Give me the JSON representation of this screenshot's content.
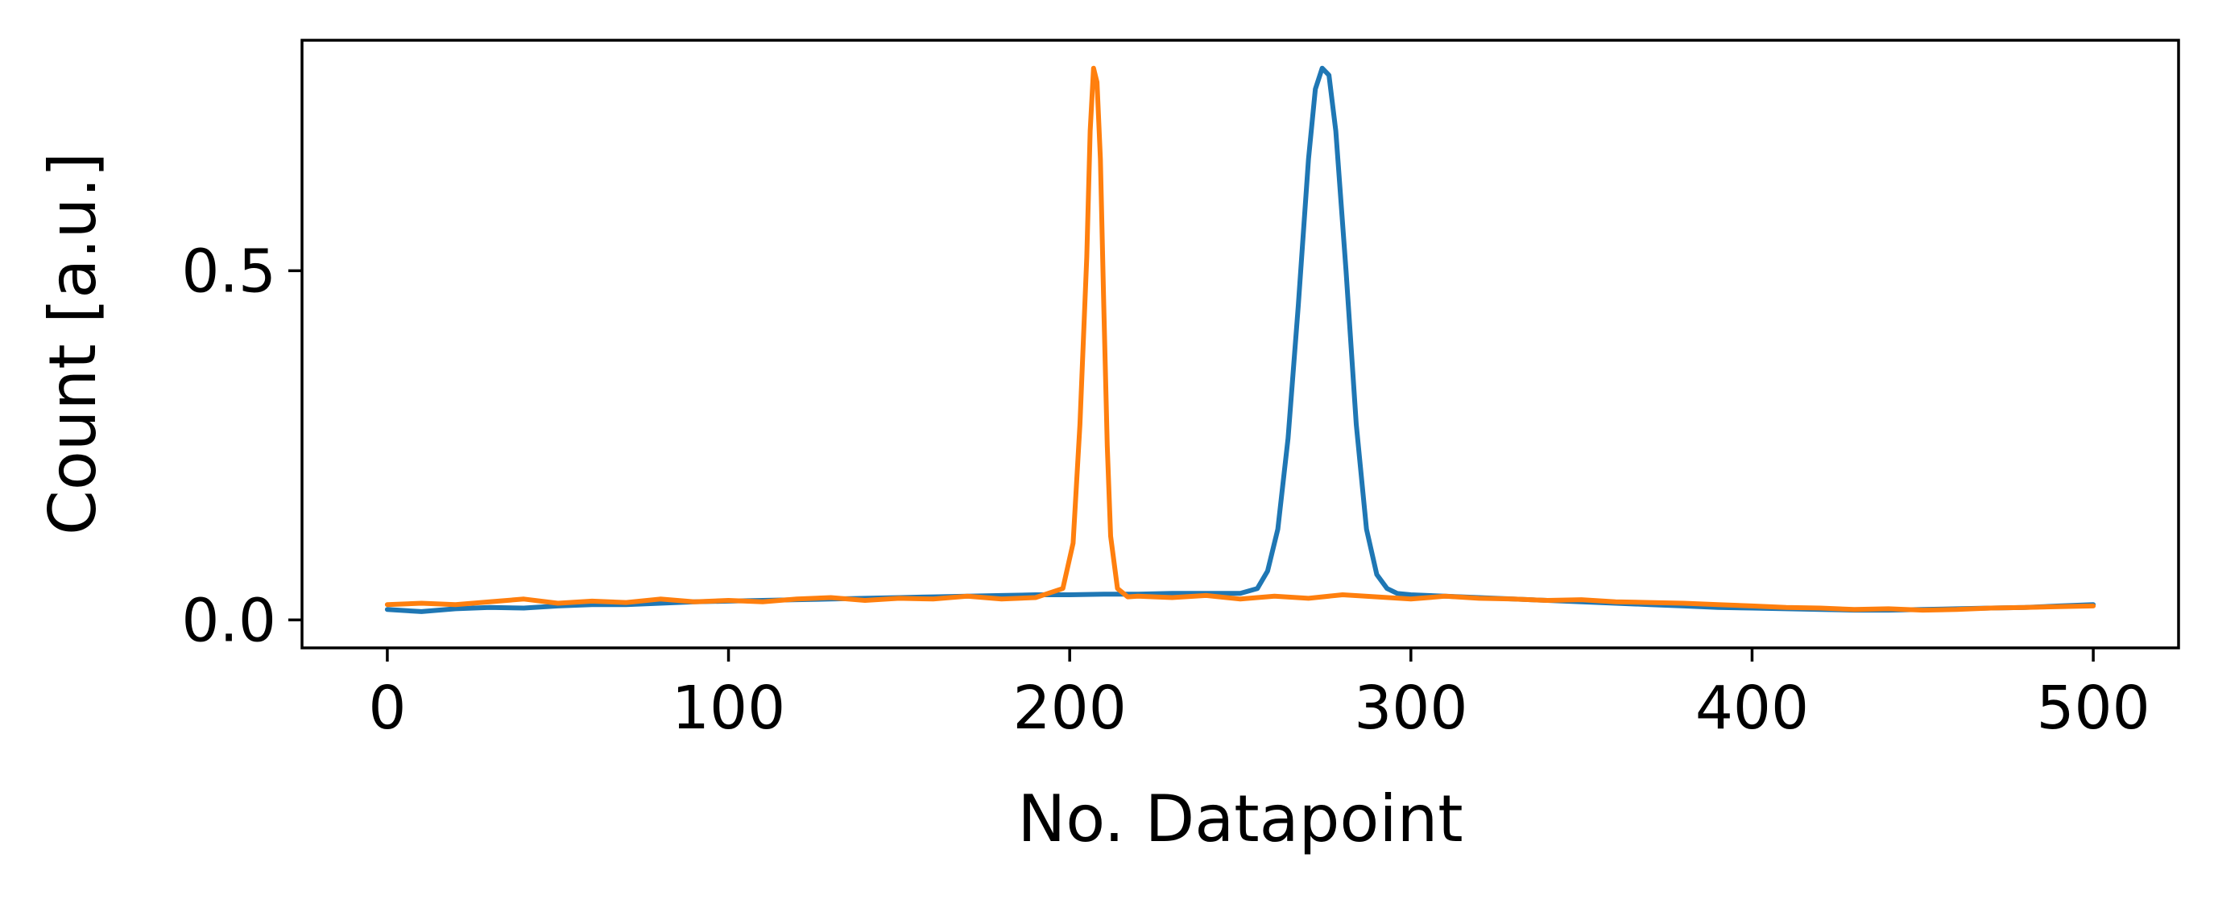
{
  "chart_data": {
    "type": "line",
    "title": "",
    "xlabel": "No. Datapoint",
    "ylabel": "Count [a.u.]",
    "xlim": [
      -25,
      525
    ],
    "ylim": [
      -0.04,
      0.83
    ],
    "grid": false,
    "legend": "none",
    "x_ticks": [
      0,
      100,
      200,
      300,
      400,
      500
    ],
    "x_tick_labels": [
      "0",
      "100",
      "200",
      "300",
      "400",
      "500"
    ],
    "y_ticks": [
      0.0,
      0.5
    ],
    "y_tick_labels": [
      "0.0",
      "0.5"
    ],
    "series": [
      {
        "color": "#1f77b4",
        "x": [
          0,
          10,
          20,
          30,
          40,
          50,
          60,
          70,
          80,
          90,
          100,
          110,
          120,
          130,
          140,
          150,
          160,
          170,
          180,
          190,
          200,
          210,
          220,
          230,
          240,
          250,
          255,
          258,
          261,
          264,
          267,
          270,
          272,
          274,
          276,
          278,
          281,
          284,
          287,
          290,
          293,
          296,
          300,
          310,
          320,
          330,
          340,
          350,
          360,
          370,
          380,
          390,
          400,
          410,
          420,
          430,
          440,
          450,
          460,
          470,
          480,
          490,
          500
        ],
        "y": [
          0.015,
          0.012,
          0.016,
          0.018,
          0.017,
          0.02,
          0.022,
          0.022,
          0.024,
          0.026,
          0.027,
          0.028,
          0.029,
          0.03,
          0.031,
          0.032,
          0.033,
          0.034,
          0.035,
          0.036,
          0.036,
          0.037,
          0.037,
          0.038,
          0.038,
          0.038,
          0.045,
          0.07,
          0.13,
          0.26,
          0.45,
          0.66,
          0.76,
          0.79,
          0.78,
          0.7,
          0.5,
          0.28,
          0.13,
          0.065,
          0.045,
          0.038,
          0.036,
          0.034,
          0.032,
          0.03,
          0.028,
          0.026,
          0.024,
          0.022,
          0.02,
          0.018,
          0.017,
          0.016,
          0.015,
          0.014,
          0.014,
          0.015,
          0.016,
          0.017,
          0.018,
          0.02,
          0.022
        ]
      },
      {
        "color": "#ff7f0e",
        "x": [
          0,
          10,
          20,
          30,
          40,
          50,
          60,
          70,
          80,
          90,
          100,
          110,
          120,
          130,
          140,
          150,
          160,
          170,
          180,
          190,
          198,
          201,
          203,
          205,
          206,
          207,
          208,
          209,
          210,
          211,
          212,
          214,
          217,
          220,
          230,
          240,
          250,
          260,
          270,
          280,
          290,
          300,
          310,
          320,
          330,
          340,
          350,
          360,
          370,
          380,
          390,
          400,
          410,
          420,
          430,
          440,
          450,
          460,
          470,
          480,
          490,
          500
        ],
        "y": [
          0.022,
          0.024,
          0.022,
          0.026,
          0.03,
          0.024,
          0.027,
          0.025,
          0.03,
          0.026,
          0.028,
          0.026,
          0.03,
          0.032,
          0.028,
          0.031,
          0.03,
          0.034,
          0.03,
          0.032,
          0.045,
          0.11,
          0.28,
          0.52,
          0.7,
          0.79,
          0.77,
          0.66,
          0.45,
          0.25,
          0.12,
          0.045,
          0.033,
          0.034,
          0.032,
          0.035,
          0.03,
          0.034,
          0.031,
          0.036,
          0.033,
          0.03,
          0.034,
          0.031,
          0.03,
          0.028,
          0.029,
          0.026,
          0.025,
          0.024,
          0.022,
          0.02,
          0.018,
          0.017,
          0.015,
          0.016,
          0.014,
          0.015,
          0.017,
          0.018,
          0.019,
          0.02
        ]
      }
    ]
  }
}
